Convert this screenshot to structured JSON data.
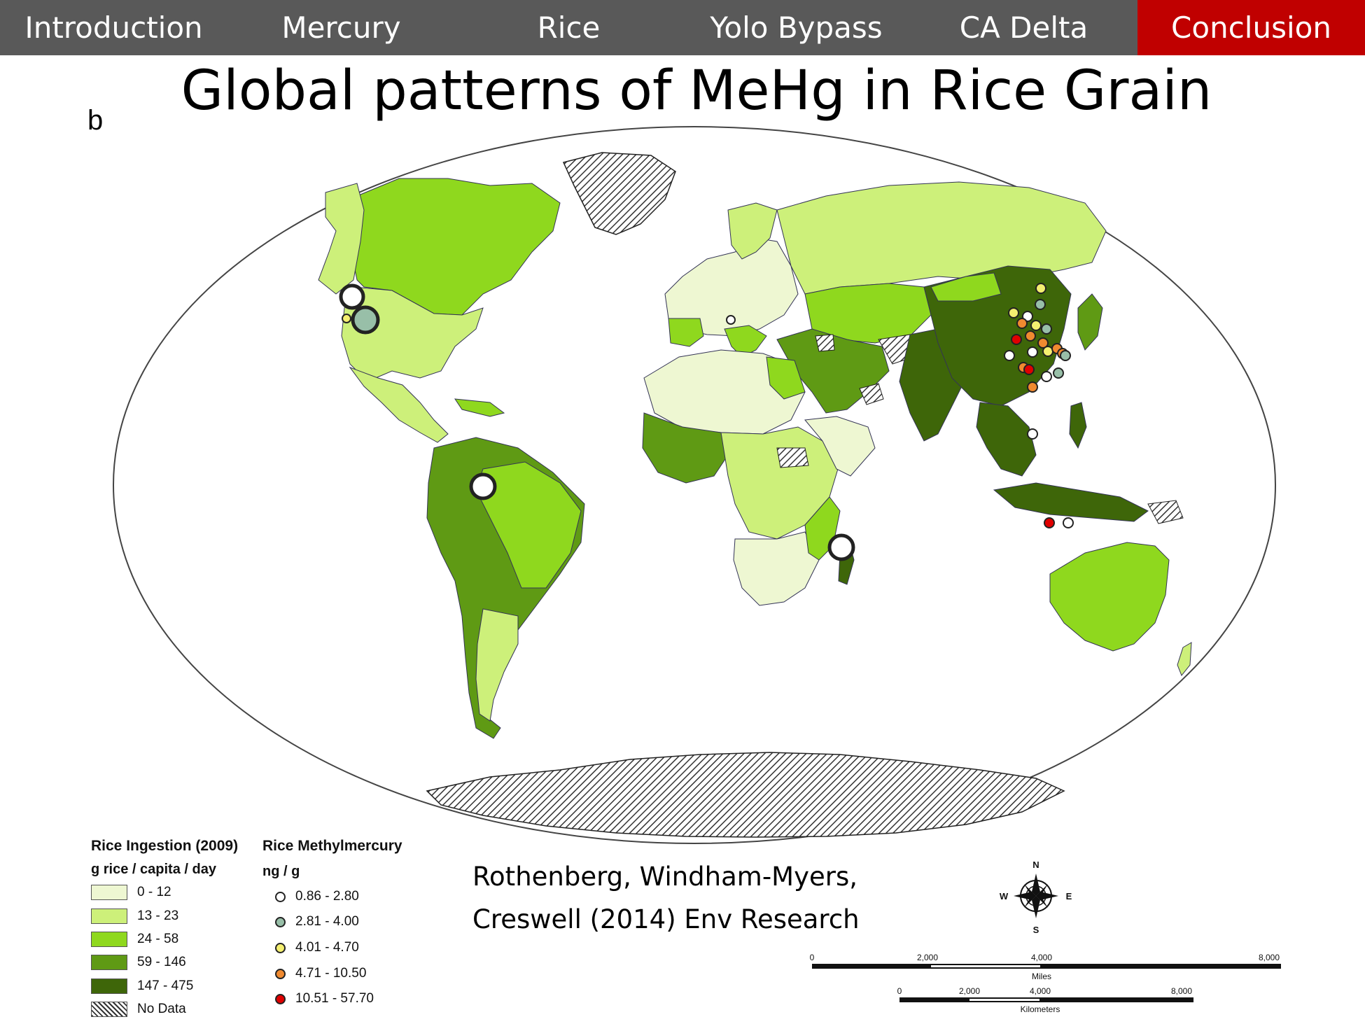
{
  "nav": {
    "tabs": [
      {
        "label": "Introduction"
      },
      {
        "label": "Mercury"
      },
      {
        "label": "Rice"
      },
      {
        "label": "Yolo Bypass"
      },
      {
        "label": "CA Delta"
      },
      {
        "label": "Conclusion"
      }
    ],
    "active_index": 5,
    "bar_color": "#595959",
    "active_color": "#c00000"
  },
  "slide": {
    "title": "Global patterns of MeHg in Rice Grain",
    "panel_label": "b"
  },
  "legend_ingestion": {
    "title": "Rice Ingestion (2009)",
    "unit": "g rice / capita / day",
    "classes": [
      {
        "label": "0 - 12",
        "color": "#eef7d2"
      },
      {
        "label": "13 - 23",
        "color": "#cdf07a"
      },
      {
        "label": "24 - 58",
        "color": "#8fd81e"
      },
      {
        "label": "59 - 146",
        "color": "#5f9a14"
      },
      {
        "label": "147 - 475",
        "color": "#3e6609"
      },
      {
        "label": "No Data",
        "pattern": "diagonal-hatch"
      }
    ]
  },
  "legend_mehg": {
    "title": "Rice Methylmercury",
    "unit": "ng / g",
    "classes": [
      {
        "label": "0.86 - 2.80",
        "color": "#ffffff"
      },
      {
        "label": "2.81 - 4.00",
        "color": "#98bfa8"
      },
      {
        "label": "4.01 - 4.70",
        "color": "#f4ef70"
      },
      {
        "label": "4.71 - 10.50",
        "color": "#f08a30"
      },
      {
        "label": "10.51 - 57.70",
        "color": "#e00000"
      }
    ]
  },
  "citation": {
    "line1": "Rothenberg, Windham-Myers,",
    "line2": "Creswell (2014) Env Research"
  },
  "compass": {
    "n": "N",
    "s": "S",
    "e": "E",
    "w": "W"
  },
  "scalebar": {
    "miles_label": "Miles",
    "miles_ticks": [
      "0",
      "2,000",
      "4,000",
      "8,000"
    ],
    "km_label": "Kilometers",
    "km_ticks": [
      "0",
      "2,000",
      "4,000",
      "8,000"
    ]
  }
}
